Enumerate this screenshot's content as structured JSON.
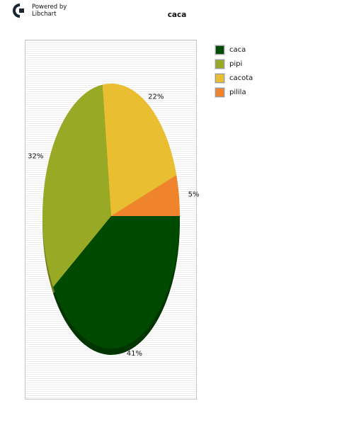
{
  "logo": {
    "line1": "Powered by",
    "line2": "Libchart"
  },
  "chart_data": {
    "type": "pie",
    "title": "caca",
    "slices": [
      {
        "label": "caca",
        "value": 41,
        "display": "41%",
        "color": "#004a00"
      },
      {
        "label": "pipi",
        "value": 32,
        "display": "32%",
        "color": "#98a925"
      },
      {
        "label": "cacota",
        "value": 22,
        "display": "22%",
        "color": "#e9be31"
      },
      {
        "label": "pilila",
        "value": 5,
        "display": "5%",
        "color": "#ef842c"
      }
    ],
    "legend_position": "right",
    "grid": true
  }
}
